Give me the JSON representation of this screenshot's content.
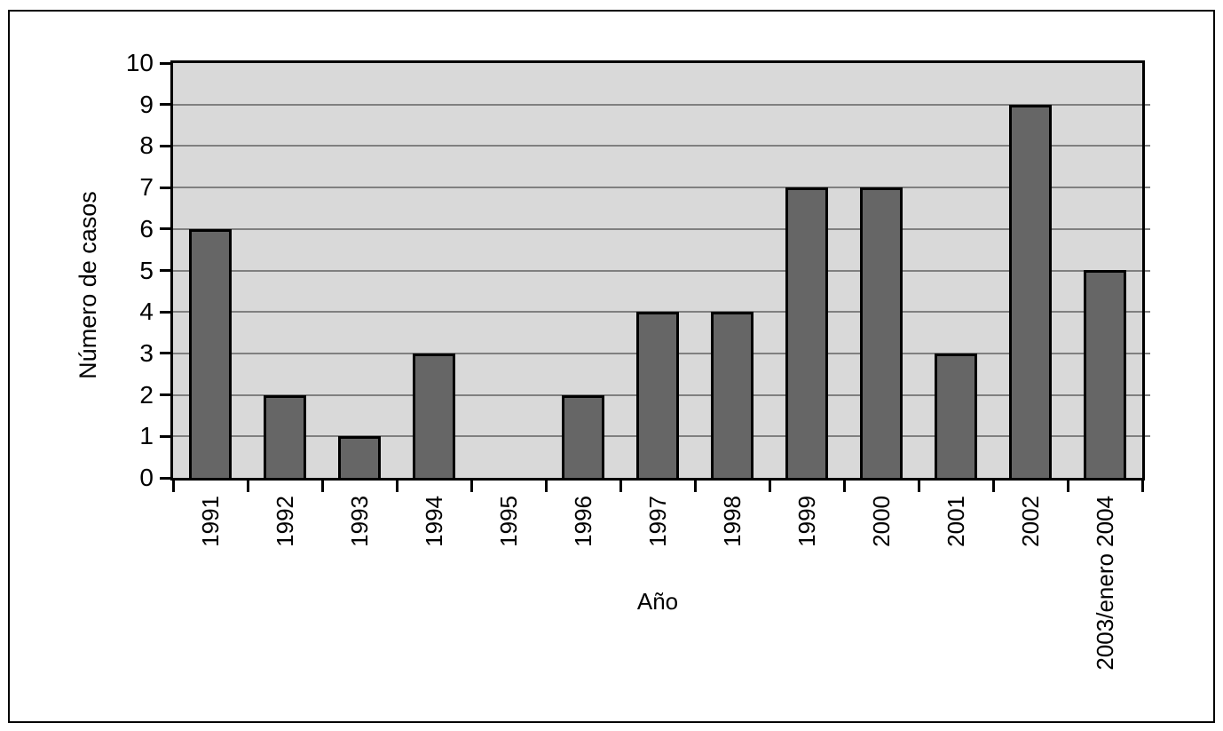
{
  "chart_data": {
    "type": "bar",
    "title": "",
    "xlabel": "Año",
    "ylabel": "Número de casos",
    "categories": [
      "1991",
      "1992",
      "1993",
      "1994",
      "1995",
      "1996",
      "1997",
      "1998",
      "1999",
      "2000",
      "2001",
      "2002",
      "2003/enero 2004"
    ],
    "values": [
      6,
      2,
      1,
      3,
      0,
      2,
      4,
      4,
      7,
      7,
      3,
      9,
      5
    ],
    "ylim": [
      0,
      10
    ],
    "yticks": [
      "0",
      "1",
      "2",
      "3",
      "4",
      "5",
      "6",
      "7",
      "8",
      "9",
      "10"
    ],
    "grid": "horizontal",
    "legend": null,
    "colors": {
      "bar_fill": "#666666",
      "bar_border": "#000000",
      "plot_background": "#d9d9d9",
      "gridline": "#808080",
      "axis": "#000000",
      "frame_border": "#000000",
      "page_background": "#ffffff",
      "text": "#000000"
    }
  }
}
